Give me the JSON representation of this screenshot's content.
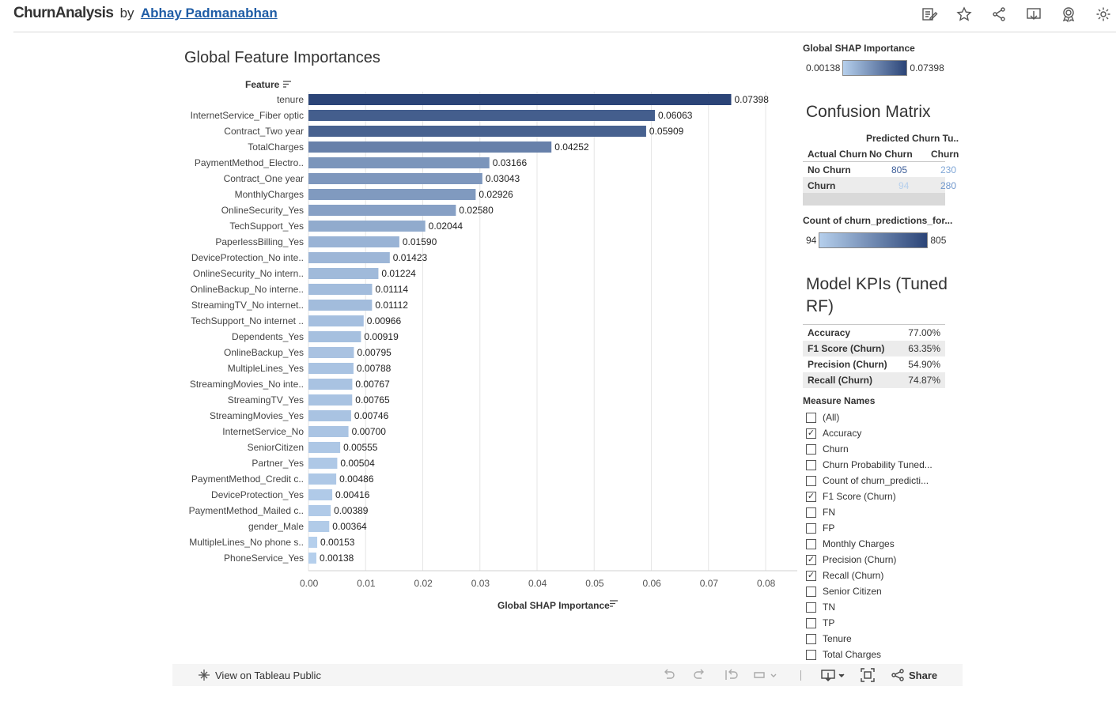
{
  "header": {
    "app_name": "ChurnAnalysis",
    "by": "by",
    "author": "Abhay Padmanabhan",
    "icons": [
      "edit-icon",
      "star-icon",
      "share-icon",
      "download-icon",
      "badge-icon",
      "gear-icon"
    ]
  },
  "chart_data": {
    "type": "bar",
    "orientation": "horizontal",
    "title": "Global Feature Importances",
    "ylabel": "Feature",
    "xlabel": "Global SHAP Importance",
    "xlim": [
      0,
      0.08
    ],
    "xticks": [
      "0.00",
      "0.01",
      "0.02",
      "0.03",
      "0.04",
      "0.05",
      "0.06",
      "0.07",
      "0.08"
    ],
    "grid": true,
    "categories": [
      "tenure",
      "InternetService_Fiber optic",
      "Contract_Two year",
      "TotalCharges",
      "PaymentMethod_Electro..",
      "Contract_One year",
      "MonthlyCharges",
      "OnlineSecurity_Yes",
      "TechSupport_Yes",
      "PaperlessBilling_Yes",
      "DeviceProtection_No inte..",
      "OnlineSecurity_No intern..",
      "OnlineBackup_No interne..",
      "StreamingTV_No internet..",
      "TechSupport_No internet ..",
      "Dependents_Yes",
      "OnlineBackup_Yes",
      "MultipleLines_Yes",
      "StreamingMovies_No inte..",
      "StreamingTV_Yes",
      "StreamingMovies_Yes",
      "InternetService_No",
      "SeniorCitizen",
      "Partner_Yes",
      "PaymentMethod_Credit c..",
      "DeviceProtection_Yes",
      "PaymentMethod_Mailed c..",
      "gender_Male",
      "MultipleLines_No phone s..",
      "PhoneService_Yes"
    ],
    "values": [
      0.07398,
      0.06063,
      0.05909,
      0.04252,
      0.03166,
      0.03043,
      0.02926,
      0.0258,
      0.02044,
      0.0159,
      0.01423,
      0.01224,
      0.01114,
      0.01112,
      0.00966,
      0.00919,
      0.00795,
      0.00788,
      0.00767,
      0.00765,
      0.00746,
      0.007,
      0.00555,
      0.00504,
      0.00486,
      0.00416,
      0.00389,
      0.00364,
      0.00153,
      0.00138
    ],
    "labels": [
      "0.07398",
      "0.06063",
      "0.05909",
      "0.04252",
      "0.03166",
      "0.03043",
      "0.02926",
      "0.02580",
      "0.02044",
      "0.01590",
      "0.01423",
      "0.01224",
      "0.01114",
      "0.01112",
      "0.00966",
      "0.00919",
      "0.00795",
      "0.00788",
      "0.00767",
      "0.00765",
      "0.00746",
      "0.00700",
      "0.00555",
      "0.00504",
      "0.00486",
      "0.00416",
      "0.00389",
      "0.00364",
      "0.00153",
      "0.00138"
    ],
    "color_min": "#b5cfec",
    "color_max": "#2b4477"
  },
  "shap_legend": {
    "title": "Global SHAP Importance",
    "min": "0.00138",
    "max": "0.07398"
  },
  "confusion_matrix": {
    "title": "Confusion Matrix",
    "col_header": "Predicted Churn Tu..",
    "row_header": "Actual Churn",
    "cols": [
      "No Churn",
      "Churn"
    ],
    "rows": [
      {
        "label": "No Churn",
        "values": [
          "805",
          "230"
        ]
      },
      {
        "label": "Churn",
        "values": [
          "94",
          "280"
        ]
      }
    ],
    "legend_title": "Count of churn_predictions_for...",
    "legend_min": "94",
    "legend_max": "805"
  },
  "kpis": {
    "title": "Model KPIs (Tuned RF)",
    "rows": [
      {
        "label": "Accuracy",
        "value": "77.00%"
      },
      {
        "label": "F1 Score (Churn)",
        "value": "63.35%"
      },
      {
        "label": "Precision (Churn)",
        "value": "54.90%"
      },
      {
        "label": "Recall (Churn)",
        "value": "74.87%"
      }
    ]
  },
  "measure_filter": {
    "title": "Measure Names",
    "items": [
      {
        "label": "(All)",
        "checked": false
      },
      {
        "label": "Accuracy",
        "checked": true
      },
      {
        "label": "Churn",
        "checked": false
      },
      {
        "label": "Churn Probability Tuned...",
        "checked": false
      },
      {
        "label": "Count of churn_predicti...",
        "checked": false
      },
      {
        "label": "F1 Score (Churn)",
        "checked": true
      },
      {
        "label": "FN",
        "checked": false
      },
      {
        "label": "FP",
        "checked": false
      },
      {
        "label": "Monthly Charges",
        "checked": false
      },
      {
        "label": "Precision (Churn)",
        "checked": true
      },
      {
        "label": "Recall (Churn)",
        "checked": true
      },
      {
        "label": "Senior Citizen",
        "checked": false
      },
      {
        "label": "TN",
        "checked": false
      },
      {
        "label": "TP",
        "checked": false
      },
      {
        "label": "Tenure",
        "checked": false
      },
      {
        "label": "Total Charges",
        "checked": false
      }
    ]
  },
  "toolbar": {
    "view_label": "View on Tableau Public",
    "share_label": "Share"
  }
}
